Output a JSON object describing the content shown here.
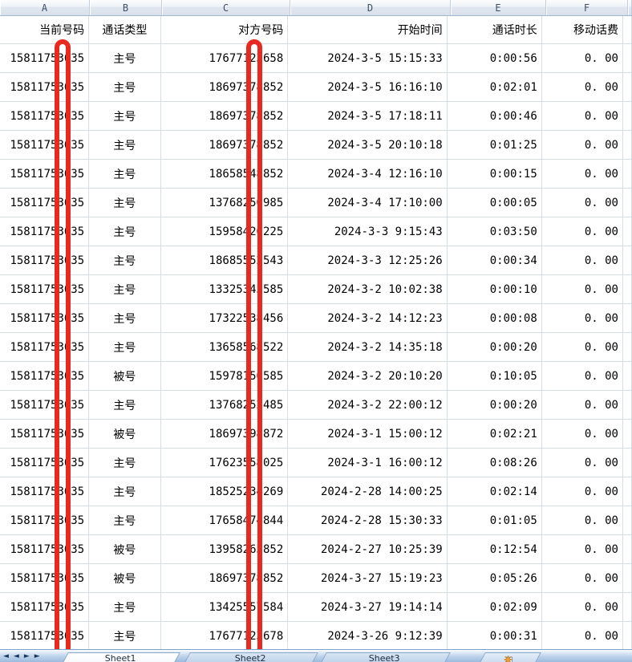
{
  "sheet": {
    "column_letters": [
      "A",
      "B",
      "C",
      "D",
      "E",
      "F"
    ]
  },
  "table": {
    "header_row": [
      "当前号码",
      "通话类型",
      "对方号码",
      "开始时间",
      "通话时长",
      "移动话费"
    ],
    "rows": [
      [
        "15811753635",
        "主号",
        "17677123658",
        "2024-3-5 15:15:33",
        "0:00:56",
        "0. 00"
      ],
      [
        "15811753635",
        "主号",
        "18697378852",
        "2024-3-5 16:16:10",
        "0:02:01",
        "0. 00"
      ],
      [
        "15811753635",
        "主号",
        "18697378852",
        "2024-3-5 17:18:11",
        "0:00:46",
        "0. 00"
      ],
      [
        "15811753635",
        "主号",
        "18697378852",
        "2024-3-5 20:10:18",
        "0:01:25",
        "0. 00"
      ],
      [
        "15811753635",
        "主号",
        "18658548852",
        "2024-3-4 12:16:10",
        "0:00:15",
        "0. 00"
      ],
      [
        "15811753635",
        "主号",
        "13768250985",
        "2024-3-4 17:10:00",
        "0:00:05",
        "0. 00"
      ],
      [
        "15811753635",
        "主号",
        "15958426225",
        "2024-3-3 9:15:43",
        "0:03:50",
        "0. 00"
      ],
      [
        "15811753635",
        "主号",
        "18685552543",
        "2024-3-3 12:25:26",
        "0:00:34",
        "0. 00"
      ],
      [
        "15811753635",
        "主号",
        "13325345585",
        "2024-3-2 10:02:38",
        "0:00:10",
        "0. 00"
      ],
      [
        "15811753635",
        "主号",
        "17322538456",
        "2024-3-2 14:12:23",
        "0:00:08",
        "0. 00"
      ],
      [
        "15811753635",
        "主号",
        "13658568522",
        "2024-3-2 14:35:18",
        "0:00:20",
        "0. 00"
      ],
      [
        "15811753635",
        "被号",
        "15978156585",
        "2024-3-2 20:10:20",
        "0:10:05",
        "0. 00"
      ],
      [
        "15811753635",
        "主号",
        "13768252485",
        "2024-3-2 22:00:12",
        "0:00:20",
        "0. 00"
      ],
      [
        "15811753635",
        "被号",
        "18697398872",
        "2024-3-1 15:00:12",
        "0:02:21",
        "0. 00"
      ],
      [
        "15811753635",
        "主号",
        "17623558025",
        "2024-3-1 16:00:12",
        "0:08:26",
        "0. 00"
      ],
      [
        "15811753635",
        "主号",
        "18525234269",
        "2024-2-28 14:00:25",
        "0:02:14",
        "0. 00"
      ],
      [
        "15811753635",
        "主号",
        "17658474844",
        "2024-2-28 15:30:33",
        "0:01:05",
        "0. 00"
      ],
      [
        "15811753635",
        "被号",
        "13958265852",
        "2024-2-27 10:25:39",
        "0:12:54",
        "0. 00"
      ],
      [
        "15811753635",
        "被号",
        "18697378852",
        "2024-3-27 15:19:23",
        "0:05:26",
        "0. 00"
      ],
      [
        "15811753635",
        "主号",
        "13425557584",
        "2024-3-27 19:14:14",
        "0:02:09",
        "0. 00"
      ],
      [
        "15811753635",
        "主号",
        "17677123678",
        "2024-3-26 9:12:39",
        "0:00:31",
        "0. 00"
      ]
    ]
  },
  "annotations": {
    "redaction_color": "#e8291f",
    "redacted_columns": [
      "A",
      "C"
    ]
  },
  "tabbar": {
    "tabs": [
      "Sheet1",
      "Sheet2",
      "Sheet3"
    ],
    "active_tab": "Sheet1",
    "nav_first": "◄",
    "nav_prev": "◄",
    "nav_next": "►",
    "nav_last": "►"
  },
  "colors": {
    "gridline": "#d5dde7",
    "header_border": "#9eb6ce",
    "tabbar_blue": "#9cbade"
  }
}
